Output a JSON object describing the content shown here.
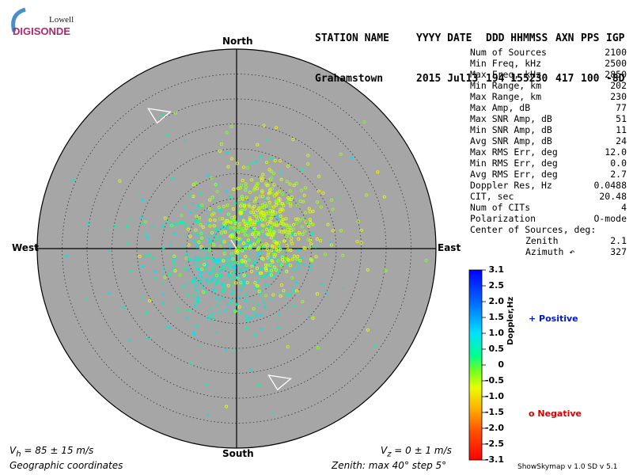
{
  "logo": {
    "line1": "Lowell",
    "line2": "DIGISONDE"
  },
  "header": {
    "columns": [
      "STATION NAME",
      "YYYY DATE",
      "DDD HHMMSS",
      "AXN",
      "PPS",
      "IGP"
    ],
    "values": [
      "Grahamstown",
      "2015 Jul13",
      "194 155230",
      "417",
      "100",
      "-8D"
    ]
  },
  "stats": [
    {
      "label": "Num of Sources",
      "value": "2100"
    },
    {
      "label": "Min Freq, kHz",
      "value": "2500"
    },
    {
      "label": "Max Freq, kHz",
      "value": "2850"
    },
    {
      "label": "Min Range, km",
      "value": "202"
    },
    {
      "label": "Max Range, km",
      "value": "230"
    },
    {
      "label": "Max Amp, dB",
      "value": "77"
    },
    {
      "label": "Max SNR Amp, dB",
      "value": "51"
    },
    {
      "label": "Min SNR Amp, dB",
      "value": "11"
    },
    {
      "label": "Avg SNR Amp, dB",
      "value": "24"
    },
    {
      "label": "Max RMS Err, deg",
      "value": "12.0"
    },
    {
      "label": "Min RMS Err, deg",
      "value": "0.0"
    },
    {
      "label": "Avg RMS Err, deg",
      "value": "2.7"
    },
    {
      "label": "Doppler Res, Hz",
      "value": "0.0488"
    },
    {
      "label": "CIT, sec",
      "value": "20.48"
    },
    {
      "label": "Num of CITs",
      "value": "4"
    },
    {
      "label": "Polarization",
      "value": "O-mode"
    },
    {
      "label": "Center of Sources, deg:",
      "value": ""
    },
    {
      "label": "Zenith",
      "value": "2.1"
    },
    {
      "label": "Azimuth ↶",
      "value": "327"
    }
  ],
  "directions": {
    "north": "North",
    "south": "South",
    "east": "East",
    "west": "West"
  },
  "footer": {
    "vh": "V",
    "vh_sub": "h",
    "vh_value": " = 85 ± 15 m/s",
    "vz": "V",
    "vz_sub": "z",
    "vz_value": " = 0 ± 1 m/s",
    "coords": "Geographic coordinates",
    "zenith": "Zenith: max 40°  step 5°",
    "software": "ShowSkymap v 1.0   SD v 5.1"
  },
  "legend": {
    "positive": "+ Positive",
    "negative": "o Negative",
    "scale_label": "Doppler,Hz"
  },
  "colors": {
    "sky_bg": "#a6a6a6",
    "positive": "#0019c4",
    "negative": "#d40000"
  },
  "chart_data": {
    "type": "scatter",
    "projection": "polar skymap",
    "zenith_max_deg": 40,
    "zenith_step_deg": 5,
    "colorbar": {
      "label": "Doppler,Hz",
      "range": [
        -3.1,
        3.1
      ],
      "ticks": [
        "3.1",
        "2.5",
        "2.0",
        "1.5",
        "1.0",
        "0.5",
        "0",
        "-0.5",
        "-1.0",
        "-1.5",
        "-2.0",
        "-2.5",
        "-3.1"
      ]
    },
    "series": [
      {
        "name": "Positive",
        "marker": "+",
        "cluster": {
          "east_deg": -2,
          "north_deg": -2,
          "spread_deg": 7,
          "doppler_hz": [
            0.3,
            1.0
          ]
        }
      },
      {
        "name": "Negative",
        "marker": "o",
        "cluster": {
          "east_deg": 5,
          "north_deg": 4,
          "spread_deg": 6,
          "doppler_hz": [
            -1.0,
            -0.2
          ]
        }
      }
    ],
    "antenna_triangles": [
      {
        "zenith_deg": 31,
        "azimuth_deg": 330
      },
      {
        "zenith_deg": 28,
        "azimuth_deg": 162
      }
    ],
    "center_of_sources": {
      "zenith_deg": 2.1,
      "azimuth_deg": 327
    }
  }
}
